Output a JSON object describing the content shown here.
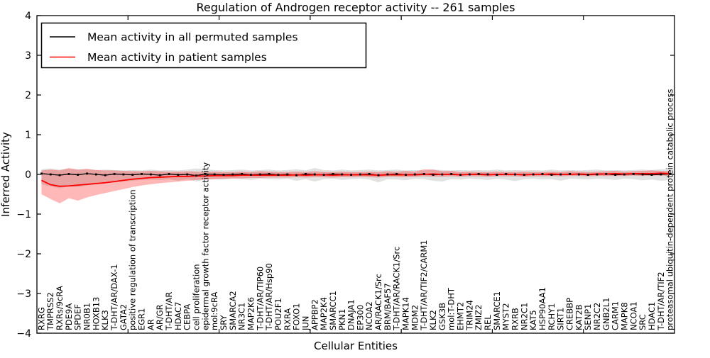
{
  "chart_data": {
    "type": "line",
    "title": "Regulation of Androgen receptor activity -- 261 samples",
    "xlabel": "Cellular Entities",
    "ylabel": "Inferred Activity",
    "ylim": [
      -4,
      4
    ],
    "ytick_values": [
      4,
      3,
      2,
      1,
      0,
      -1,
      -2,
      -3,
      -4
    ],
    "ytick_labels": [
      "4",
      "3",
      "2",
      "1",
      "0",
      "−1",
      "−2",
      "−3",
      "−4"
    ],
    "legend_position": "upper left",
    "grid": false,
    "legend": [
      {
        "label": "Mean activity in all permuted samples",
        "color": "#000000"
      },
      {
        "label": "Mean activity in patient samples",
        "color": "#ff0000"
      }
    ],
    "categories": [
      "RXRG",
      "TMPRSS2",
      "RXRs/9cRA",
      "PDE9A",
      "SPDEF",
      "NR0B1",
      "HOXB13",
      "KLK3",
      "T-DHT/AR/DAX-1",
      "GATA2",
      "positive regulation of transcription",
      "EGR1",
      "AR",
      "AR/GR",
      "T-DHT/AR",
      "HDAC7",
      "CEBPA",
      "cell proliferation",
      "epidermal growth factor receptor activity",
      "mol:9cRA",
      "SRY",
      "SMARCA2",
      "NR3C1",
      "MAP2K6",
      "T-DHT/AR/TIP60",
      "T-DHT/AR/Hsp90",
      "POU2F1",
      "RXRA",
      "FOXO1",
      "JUN",
      "APPBP2",
      "MAP2K4",
      "SMARCC1",
      "PKN1",
      "DNAJA1",
      "EP300",
      "NCOA2",
      "AR/RACK1/Src",
      "BRM/BAF57",
      "T-DHT/AR/RACK1/Src",
      "MAPK14",
      "MDM2",
      "T-DHT/AR/TIF2/CARM1",
      "KLK2",
      "GSK3B",
      "mol:T-DHT",
      "EHMT2",
      "TRIM24",
      "ZMIZ2",
      "REL",
      "SMARCE1",
      "MYST2",
      "RXRB",
      "NR2C1",
      "KAT5",
      "HSP90AA1",
      "RCHY1",
      "SIRT1",
      "CREBBP",
      "KAT2B",
      "SENP1",
      "NR2C2",
      "GNB2L1",
      "CARM1",
      "MAPK8",
      "NCOA1",
      "SRC",
      "HDAC1",
      "T-DHT/AR/TIF2",
      "proteasomal ubiquitin-dependent protein catabolic process"
    ],
    "series": [
      {
        "name": "Mean activity in all permuted samples",
        "color": "#000000",
        "band_color": "#bdbdbd",
        "band_alpha": 0.45,
        "values": [
          0.02,
          0.0,
          -0.02,
          0.01,
          -0.01,
          0.02,
          0.0,
          -0.02,
          0.01,
          0.0,
          -0.01,
          0.01,
          0.0,
          -0.02,
          0.01,
          -0.01,
          0.0,
          -0.03,
          0.01,
          0.0,
          -0.01,
          0.0,
          0.01,
          -0.01,
          0.0,
          0.01,
          -0.01,
          0.0,
          -0.02,
          0.01,
          0.0,
          -0.01,
          0.01,
          0.0,
          -0.01,
          0.0,
          0.01,
          -0.02,
          0.0,
          0.01,
          -0.01,
          0.0,
          0.01,
          -0.01,
          0.0,
          0.01,
          -0.01,
          0.0,
          0.01,
          0.0,
          -0.01,
          0.01,
          0.0,
          -0.01,
          0.0,
          0.01,
          -0.01,
          0.0,
          0.01,
          0.0,
          -0.01,
          0.0,
          0.01,
          -0.01,
          0.0,
          0.01,
          0.0,
          -0.01,
          0.0,
          0.01
        ],
        "band_upper": [
          0.13,
          0.15,
          0.12,
          0.14,
          0.12,
          0.13,
          0.11,
          0.12,
          0.11,
          0.1,
          0.11,
          0.1,
          0.12,
          0.1,
          0.11,
          0.1,
          0.12,
          0.15,
          0.13,
          0.11,
          0.1,
          0.11,
          0.12,
          0.1,
          0.11,
          0.12,
          0.1,
          0.11,
          0.13,
          0.1,
          0.16,
          0.11,
          0.1,
          0.12,
          0.1,
          0.11,
          0.12,
          0.1,
          0.11,
          0.12,
          0.1,
          0.11,
          0.1,
          0.12,
          0.11,
          0.1,
          0.11,
          0.1,
          0.11,
          0.1,
          0.12,
          0.1,
          0.11,
          0.1,
          0.11,
          0.1,
          0.12,
          0.1,
          0.11,
          0.1,
          0.11,
          0.12,
          0.1,
          0.11,
          0.1,
          0.11,
          0.12,
          0.11,
          0.13,
          0.12
        ],
        "band_lower": [
          -0.25,
          -0.3,
          -0.35,
          -0.3,
          -0.32,
          -0.28,
          -0.25,
          -0.22,
          -0.2,
          -0.18,
          -0.16,
          -0.14,
          -0.13,
          -0.14,
          -0.12,
          -0.16,
          -0.12,
          -0.18,
          -0.13,
          -0.12,
          -0.13,
          -0.11,
          -0.12,
          -0.14,
          -0.11,
          -0.12,
          -0.13,
          -0.11,
          -0.16,
          -0.12,
          -0.18,
          -0.12,
          -0.11,
          -0.14,
          -0.12,
          -0.11,
          -0.13,
          -0.2,
          -0.12,
          -0.13,
          -0.15,
          -0.11,
          -0.12,
          -0.16,
          -0.18,
          -0.12,
          -0.13,
          -0.11,
          -0.12,
          -0.14,
          -0.11,
          -0.13,
          -0.17,
          -0.12,
          -0.11,
          -0.13,
          -0.12,
          -0.16,
          -0.11,
          -0.12,
          -0.13,
          -0.11,
          -0.12,
          -0.14,
          -0.11,
          -0.12,
          -0.15,
          -0.13,
          -0.16,
          -0.14
        ]
      },
      {
        "name": "Mean activity in patient samples",
        "color": "#ff0000",
        "band_color": "#ff0000",
        "band_alpha": 0.28,
        "values": [
          -0.15,
          -0.26,
          -0.3,
          -0.29,
          -0.27,
          -0.25,
          -0.23,
          -0.21,
          -0.18,
          -0.15,
          -0.12,
          -0.1,
          -0.08,
          -0.07,
          -0.06,
          -0.05,
          -0.05,
          -0.04,
          -0.04,
          -0.03,
          -0.03,
          -0.03,
          -0.02,
          -0.02,
          -0.02,
          -0.02,
          -0.02,
          -0.02,
          -0.01,
          -0.02,
          -0.01,
          -0.01,
          -0.02,
          -0.01,
          -0.01,
          -0.01,
          -0.01,
          -0.02,
          -0.01,
          -0.01,
          -0.01,
          -0.01,
          0.0,
          0.01,
          0.0,
          0.0,
          -0.01,
          0.0,
          0.0,
          -0.01,
          0.0,
          0.0,
          0.0,
          -0.01,
          0.0,
          0.0,
          0.01,
          0.0,
          0.0,
          0.01,
          0.0,
          0.01,
          0.01,
          0.02,
          0.01,
          0.02,
          0.02,
          0.02,
          0.03,
          0.02
        ],
        "band_upper": [
          0.1,
          0.12,
          0.1,
          0.16,
          0.12,
          0.14,
          0.11,
          0.1,
          0.1,
          0.09,
          0.08,
          0.08,
          0.09,
          0.08,
          0.07,
          0.07,
          0.08,
          0.07,
          0.06,
          0.07,
          0.06,
          0.06,
          0.07,
          0.06,
          0.08,
          0.07,
          0.06,
          0.06,
          0.07,
          0.06,
          0.08,
          0.06,
          0.06,
          0.07,
          0.06,
          0.06,
          0.07,
          0.06,
          0.08,
          0.07,
          0.09,
          0.07,
          0.13,
          0.12,
          0.08,
          0.09,
          0.06,
          0.07,
          0.06,
          0.06,
          0.07,
          0.06,
          0.06,
          0.07,
          0.06,
          0.06,
          0.07,
          0.06,
          0.08,
          0.07,
          0.06,
          0.07,
          0.08,
          0.09,
          0.07,
          0.08,
          0.09,
          0.1,
          0.09,
          0.08
        ],
        "band_lower": [
          -0.5,
          -0.62,
          -0.73,
          -0.6,
          -0.66,
          -0.58,
          -0.52,
          -0.47,
          -0.42,
          -0.37,
          -0.32,
          -0.28,
          -0.25,
          -0.22,
          -0.2,
          -0.18,
          -0.16,
          -0.14,
          -0.13,
          -0.12,
          -0.11,
          -0.1,
          -0.1,
          -0.09,
          -0.09,
          -0.08,
          -0.08,
          -0.08,
          -0.07,
          -0.08,
          -0.07,
          -0.07,
          -0.08,
          -0.07,
          -0.07,
          -0.06,
          -0.07,
          -0.08,
          -0.06,
          -0.06,
          -0.07,
          -0.06,
          -0.05,
          -0.06,
          -0.06,
          -0.05,
          -0.06,
          -0.05,
          -0.05,
          -0.06,
          -0.05,
          -0.05,
          -0.05,
          -0.06,
          -0.05,
          -0.05,
          -0.04,
          -0.05,
          -0.04,
          -0.04,
          -0.05,
          -0.04,
          -0.04,
          -0.04,
          -0.04,
          -0.03,
          -0.04,
          -0.03,
          -0.03,
          -0.04
        ]
      }
    ]
  }
}
